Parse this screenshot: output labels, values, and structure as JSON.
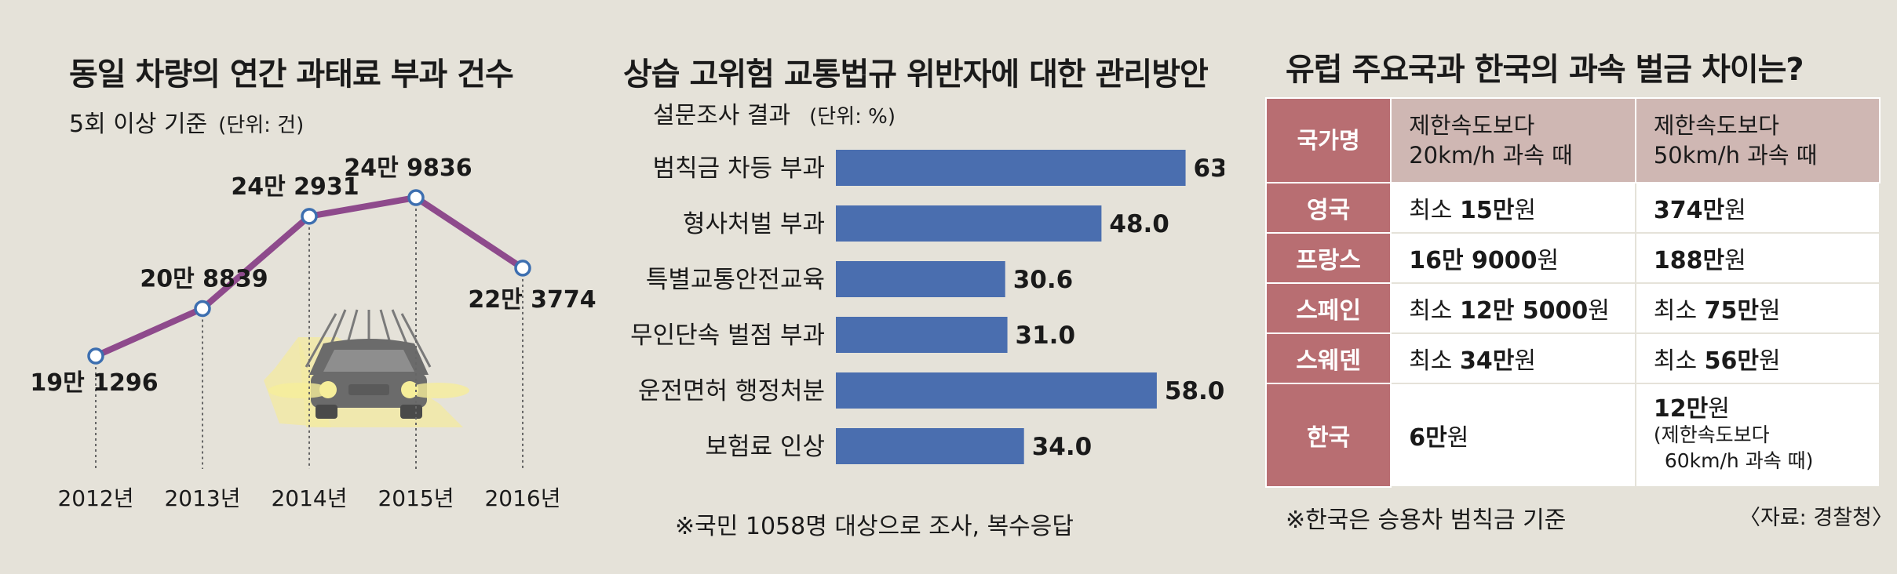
{
  "panel1": {
    "title": "동일 차량의 연간 과태료 부과 건수",
    "subtitle": "5회 이상 기준",
    "unit": "(단위: 건)"
  },
  "panel2": {
    "title": "상습 고위험 교통법규 위반자에 대한 관리방안",
    "subtitle": "설문조사 결과",
    "unit": "(단위: %)",
    "note": "※국민 1058명 대상으로 조사, 복수응답"
  },
  "panel3": {
    "title": "유럽 주요국과 한국의 과속 벌금 차이는?",
    "header": {
      "country": "국가명",
      "col1_line1": "제한속도보다",
      "col1_line2": "20km/h 과속 때",
      "col2_line1": "제한속도보다",
      "col2_line2": "50km/h 과속 때"
    },
    "rows": [
      {
        "country": "영국",
        "c1_pre": "최소 ",
        "c1_bold": "15만",
        "c1_post": "원",
        "c2_pre": "",
        "c2_bold": "374만",
        "c2_post": "원"
      },
      {
        "country": "프랑스",
        "c1_pre": "",
        "c1_bold": "16만 9000",
        "c1_post": "원",
        "c2_pre": "",
        "c2_bold": "188만",
        "c2_post": "원"
      },
      {
        "country": "스페인",
        "c1_pre": "최소 ",
        "c1_bold": "12만 5000",
        "c1_post": "원",
        "c2_pre": "최소 ",
        "c2_bold": "75만",
        "c2_post": "원"
      },
      {
        "country": "스웨덴",
        "c1_pre": "최소 ",
        "c1_bold": "34만",
        "c1_post": "원",
        "c2_pre": "최소 ",
        "c2_bold": "56만",
        "c2_post": "원"
      }
    ],
    "korea": {
      "country": "한국",
      "c1_bold": "6만",
      "c1_post": "원",
      "c2_bold": "12만",
      "c2_post": "원",
      "c2_note1": "(제한속도보다",
      "c2_note2": "60km/h 과속 때)"
    },
    "note": "※한국은 승용차 범칙금 기준",
    "source": "〈자료: 경찰청〉"
  },
  "chart_data": [
    {
      "type": "line",
      "title": "동일 차량의 연간 과태료 부과 건수",
      "subtitle": "5회 이상 기준",
      "unit": "건",
      "x": [
        "2012년",
        "2013년",
        "2014년",
        "2015년",
        "2016년"
      ],
      "values": [
        191296,
        208839,
        242931,
        249836,
        223774
      ],
      "labels": [
        "19만 1296",
        "20만 8839",
        "24만 2931",
        "24만 9836",
        "22만 3774"
      ],
      "line_color": "#8e4a8c",
      "grid": false
    },
    {
      "type": "bar",
      "orientation": "horizontal",
      "title": "상습 고위험 교통법규 위반자에 대한 관리방안",
      "subtitle": "설문조사 결과",
      "unit": "%",
      "categories": [
        "범칙금 차등 부과",
        "형사처벌 부과",
        "특별교통안전교육",
        "무인단속 벌점 부과",
        "운전면허 행정처분",
        "보험료 인상"
      ],
      "values": [
        63.2,
        48.0,
        30.6,
        31.0,
        58.0,
        34.0
      ],
      "value_labels": [
        "63.2",
        "48.0",
        "30.6",
        "31.0",
        "58.0",
        "34.0"
      ],
      "bar_color": "#4a6eaf",
      "grid": false
    }
  ]
}
